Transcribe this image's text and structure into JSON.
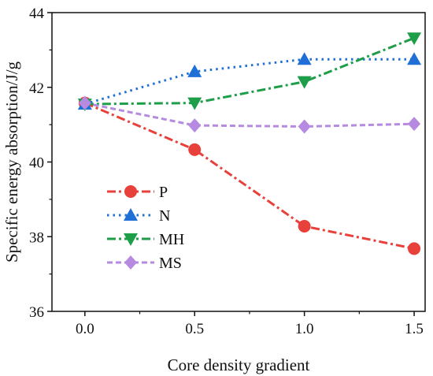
{
  "chart_data": {
    "type": "line",
    "xlabel": "Core density gradient",
    "ylabel": "Specific energy absorption/J/g",
    "xlim": [
      -0.15,
      1.55
    ],
    "ylim": [
      36,
      44
    ],
    "x_ticks": [
      "0.0",
      "0.5",
      "1.0",
      "1.5"
    ],
    "y_ticks": [
      "36",
      "38",
      "40",
      "42",
      "44"
    ],
    "x_tick_values": [
      0,
      0.5,
      1.0,
      1.5
    ],
    "y_tick_values": [
      36,
      38,
      40,
      42,
      44
    ],
    "grid": false,
    "legend_position": "center-left",
    "x": [
      0,
      0.5,
      1.0,
      1.5
    ],
    "series": [
      {
        "name": "P",
        "values": [
          41.58,
          40.33,
          38.28,
          37.68
        ],
        "color": "#e8403a",
        "marker": "circle",
        "dash": "dash-dot"
      },
      {
        "name": "N",
        "values": [
          41.55,
          42.42,
          42.75,
          42.75
        ],
        "color": "#1f6fd6",
        "marker": "triangle-up",
        "dash": "dotted"
      },
      {
        "name": "MH",
        "values": [
          41.55,
          41.58,
          42.15,
          43.32
        ],
        "color": "#1f9e4a",
        "marker": "triangle-down",
        "dash": "dash-dot"
      },
      {
        "name": "MS",
        "values": [
          41.58,
          40.98,
          40.95,
          41.02
        ],
        "color": "#b58ae0",
        "marker": "diamond",
        "dash": "dashed"
      }
    ]
  }
}
